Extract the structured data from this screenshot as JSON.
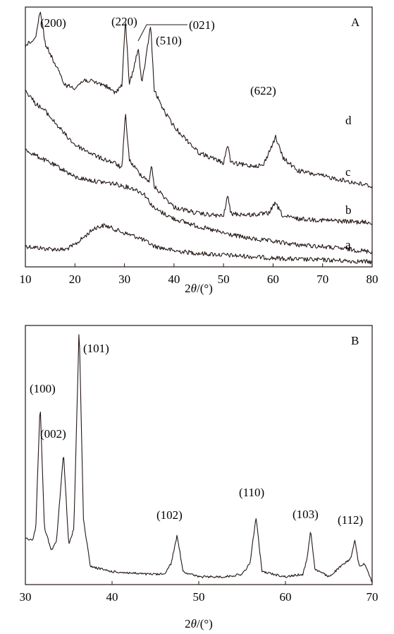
{
  "chart_data": [
    {
      "panel": "A",
      "type": "line",
      "xlabel_prefix": "2",
      "xlabel_var": "θ",
      "xlabel_unit": "/(°)",
      "ylabel": "",
      "xlim": [
        10,
        80
      ],
      "x_ticks": [
        10,
        20,
        30,
        40,
        50,
        60,
        70,
        80
      ],
      "grid": false,
      "series": [
        {
          "name": "a",
          "color": "#231815",
          "points": [
            [
              10,
              0.08
            ],
            [
              14,
              0.07
            ],
            [
              18,
              0.066
            ],
            [
              20,
              0.085
            ],
            [
              24,
              0.15
            ],
            [
              26,
              0.16
            ],
            [
              28,
              0.145
            ],
            [
              30,
              0.13
            ],
            [
              33,
              0.112
            ],
            [
              36,
              0.08
            ],
            [
              40,
              0.062
            ],
            [
              45,
              0.052
            ],
            [
              50,
              0.046
            ],
            [
              55,
              0.04
            ],
            [
              60,
              0.034
            ],
            [
              65,
              0.029
            ],
            [
              70,
              0.027
            ],
            [
              75,
              0.023
            ],
            [
              80,
              0.019
            ]
          ]
        },
        {
          "name": "b",
          "color": "#231815",
          "points": [
            [
              10,
              0.45
            ],
            [
              14,
              0.41
            ],
            [
              18,
              0.37
            ],
            [
              20,
              0.345
            ],
            [
              24,
              0.33
            ],
            [
              28,
              0.32
            ],
            [
              32,
              0.3
            ],
            [
              34,
              0.28
            ],
            [
              36,
              0.225
            ],
            [
              40,
              0.185
            ],
            [
              45,
              0.155
            ],
            [
              50,
              0.13
            ],
            [
              55,
              0.11
            ],
            [
              59,
              0.1
            ],
            [
              60,
              0.098
            ],
            [
              65,
              0.085
            ],
            [
              70,
              0.078
            ],
            [
              75,
              0.068
            ],
            [
              80,
              0.058
            ]
          ]
        },
        {
          "name": "c",
          "color": "#231815",
          "points": [
            [
              10,
              0.68
            ],
            [
              12,
              0.63
            ],
            [
              14,
              0.6
            ],
            [
              18,
              0.51
            ],
            [
              20,
              0.47
            ],
            [
              25,
              0.42
            ],
            [
              28,
              0.4
            ],
            [
              29.5,
              0.38
            ],
            [
              30.2,
              0.59
            ],
            [
              31,
              0.41
            ],
            [
              33,
              0.36
            ],
            [
              35,
              0.33
            ],
            [
              35.5,
              0.39
            ],
            [
              36,
              0.31
            ],
            [
              40,
              0.23
            ],
            [
              45,
              0.205
            ],
            [
              50,
              0.195
            ],
            [
              50.8,
              0.275
            ],
            [
              51.5,
              0.205
            ],
            [
              55,
              0.2
            ],
            [
              59,
              0.205
            ],
            [
              60.5,
              0.245
            ],
            [
              62,
              0.195
            ],
            [
              65,
              0.185
            ],
            [
              70,
              0.18
            ],
            [
              75,
              0.175
            ],
            [
              80,
              0.17
            ]
          ]
        },
        {
          "name": "d",
          "color": "#231815",
          "points": [
            [
              10,
              0.85
            ],
            [
              12,
              0.88
            ],
            [
              13,
              0.99
            ],
            [
              14,
              0.86
            ],
            [
              16,
              0.78
            ],
            [
              18,
              0.7
            ],
            [
              20,
              0.69
            ],
            [
              22,
              0.72
            ],
            [
              26,
              0.7
            ],
            [
              28,
              0.67
            ],
            [
              29.5,
              0.7
            ],
            [
              30.2,
              0.95
            ],
            [
              31,
              0.7
            ],
            [
              32.8,
              0.84
            ],
            [
              33.5,
              0.7
            ],
            [
              35.3,
              0.93
            ],
            [
              36,
              0.68
            ],
            [
              38,
              0.6
            ],
            [
              40,
              0.54
            ],
            [
              45,
              0.44
            ],
            [
              50,
              0.4
            ],
            [
              50.8,
              0.47
            ],
            [
              51.5,
              0.4
            ],
            [
              55,
              0.39
            ],
            [
              58,
              0.39
            ],
            [
              60.5,
              0.5
            ],
            [
              62,
              0.42
            ],
            [
              65,
              0.37
            ],
            [
              70,
              0.35
            ],
            [
              75,
              0.33
            ],
            [
              80,
              0.31
            ]
          ]
        }
      ],
      "peak_labels": [
        "(200)",
        "(220)",
        "(021)",
        "(510)",
        "(622)"
      ],
      "panel_label": "A"
    },
    {
      "panel": "B",
      "type": "line",
      "xlabel_prefix": "2",
      "xlabel_var": "θ",
      "xlabel_unit": "/(°)",
      "ylabel": "",
      "xlim": [
        30,
        70
      ],
      "x_ticks": [
        30,
        40,
        50,
        60,
        70
      ],
      "grid": false,
      "series": [
        {
          "color": "#231815",
          "points": [
            [
              30,
              0.18
            ],
            [
              30.8,
              0.17
            ],
            [
              31.2,
              0.22
            ],
            [
              31.7,
              0.7
            ],
            [
              32.2,
              0.22
            ],
            [
              33,
              0.13
            ],
            [
              33.6,
              0.17
            ],
            [
              34.4,
              0.51
            ],
            [
              35,
              0.15
            ],
            [
              35.6,
              0.22
            ],
            [
              36.2,
              1.0
            ],
            [
              36.7,
              0.25
            ],
            [
              37.5,
              0.07
            ],
            [
              40,
              0.05
            ],
            [
              44,
              0.04
            ],
            [
              46,
              0.04
            ],
            [
              46.8,
              0.08
            ],
            [
              47.5,
              0.19
            ],
            [
              48.2,
              0.05
            ],
            [
              50,
              0.03
            ],
            [
              53,
              0.03
            ],
            [
              55,
              0.04
            ],
            [
              55.9,
              0.08
            ],
            [
              56.6,
              0.26
            ],
            [
              57.3,
              0.05
            ],
            [
              60,
              0.03
            ],
            [
              62,
              0.04
            ],
            [
              62.5,
              0.1
            ],
            [
              62.9,
              0.21
            ],
            [
              63.4,
              0.06
            ],
            [
              65,
              0.03
            ],
            [
              66.4,
              0.07
            ],
            [
              67.5,
              0.1
            ],
            [
              68,
              0.17
            ],
            [
              68.5,
              0.07
            ],
            [
              69,
              0.08
            ],
            [
              69.3,
              0.07
            ],
            [
              70,
              0.01
            ]
          ]
        }
      ],
      "peak_labels": [
        "(100)",
        "(002)",
        "(101)",
        "(102)",
        "(110)",
        "(103)",
        "(112)"
      ],
      "panel_label": "B"
    }
  ]
}
